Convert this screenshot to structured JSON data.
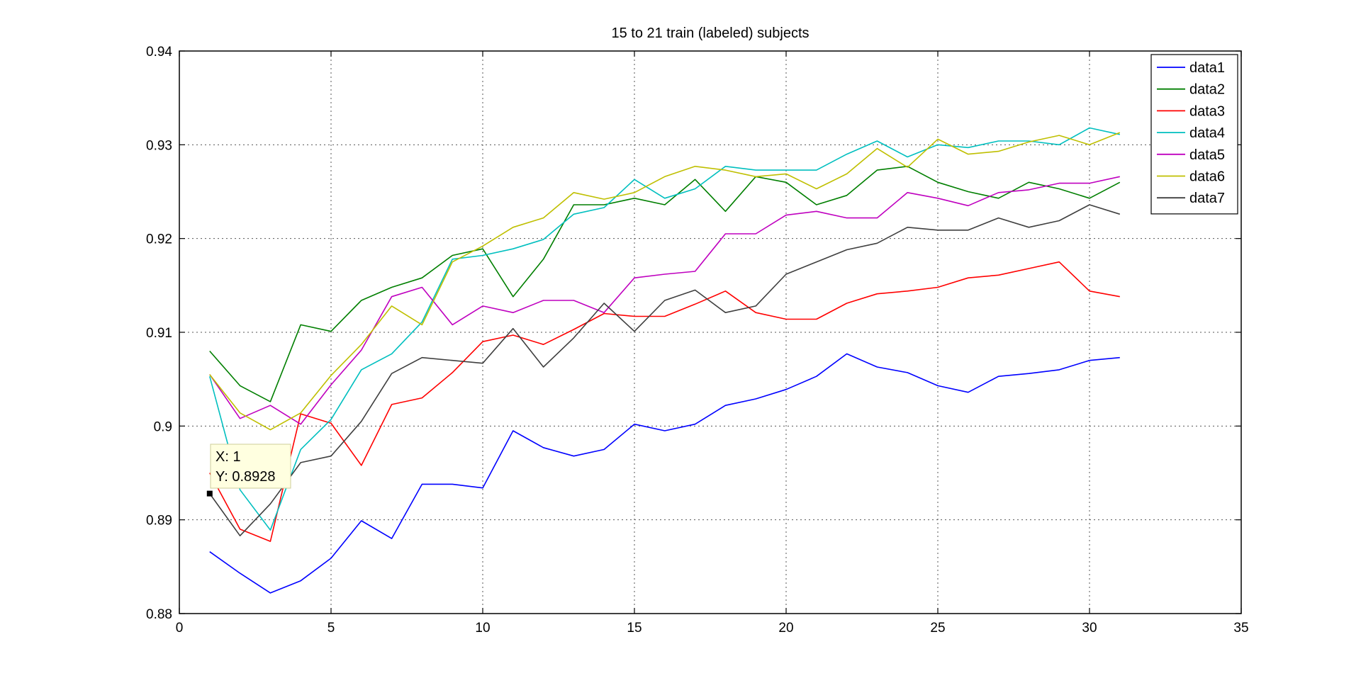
{
  "chart_data": {
    "type": "line",
    "title": "15 to 21 train (labeled) subjects",
    "xlabel": "",
    "ylabel": "",
    "xlim": [
      0,
      35
    ],
    "ylim": [
      0.88,
      0.94
    ],
    "xticks": [
      "0",
      "5",
      "10",
      "15",
      "20",
      "25",
      "30",
      "35"
    ],
    "yticks": [
      "0.88",
      "0.89",
      "0.9",
      "0.91",
      "0.92",
      "0.93",
      "0.94"
    ],
    "grid": true,
    "legend_position": "top-right",
    "x": [
      1,
      2,
      3,
      4,
      5,
      6,
      7,
      8,
      9,
      10,
      11,
      12,
      13,
      14,
      15,
      16,
      17,
      18,
      19,
      20,
      21,
      22,
      23,
      24,
      25,
      26,
      27,
      28,
      29,
      30,
      31
    ],
    "series": [
      {
        "name": "data1",
        "color": "#0000ff",
        "values": [
          0.8866,
          0.8843,
          0.8822,
          0.8835,
          0.8859,
          0.8899,
          0.888,
          0.8938,
          0.8938,
          0.8934,
          0.8995,
          0.8977,
          0.8968,
          0.8975,
          0.9002,
          0.8995,
          0.9002,
          0.9022,
          0.9029,
          0.9039,
          0.9053,
          0.9077,
          0.9063,
          0.9057,
          0.9043,
          0.9036,
          0.9053,
          0.9056,
          0.906,
          0.907,
          0.9073
        ]
      },
      {
        "name": "data2",
        "color": "#007f00",
        "values": [
          0.908,
          0.9043,
          0.9026,
          0.9108,
          0.9101,
          0.9134,
          0.9148,
          0.9158,
          0.9182,
          0.9189,
          0.9138,
          0.9178,
          0.9236,
          0.9236,
          0.9243,
          0.9236,
          0.9263,
          0.9229,
          0.9266,
          0.926,
          0.9236,
          0.9246,
          0.9273,
          0.9277,
          0.926,
          0.925,
          0.9243,
          0.926,
          0.9253,
          0.9243,
          0.926
        ]
      },
      {
        "name": "data3",
        "color": "#ff0000",
        "values": [
          0.895,
          0.889,
          0.8877,
          0.9013,
          0.9003,
          0.8958,
          0.9023,
          0.903,
          0.9057,
          0.909,
          0.9097,
          0.9087,
          0.9103,
          0.912,
          0.9117,
          0.9117,
          0.913,
          0.9144,
          0.9121,
          0.9114,
          0.9114,
          0.9131,
          0.9141,
          0.9144,
          0.9148,
          0.9158,
          0.9161,
          0.9168,
          0.9175,
          0.9144,
          0.9138
        ]
      },
      {
        "name": "data4",
        "color": "#00bfbf",
        "values": [
          0.9053,
          0.8932,
          0.8889,
          0.8975,
          0.9007,
          0.906,
          0.9077,
          0.9111,
          0.9178,
          0.9182,
          0.9189,
          0.9199,
          0.9226,
          0.9233,
          0.9263,
          0.9243,
          0.9253,
          0.9277,
          0.9273,
          0.9273,
          0.9273,
          0.929,
          0.9304,
          0.9287,
          0.93,
          0.9297,
          0.9304,
          0.9304,
          0.93,
          0.9318,
          0.9311
        ]
      },
      {
        "name": "data5",
        "color": "#bf00bf",
        "values": [
          0.9055,
          0.9008,
          0.9022,
          0.9002,
          0.9044,
          0.9081,
          0.9138,
          0.9148,
          0.9108,
          0.9128,
          0.9121,
          0.9134,
          0.9134,
          0.9121,
          0.9158,
          0.9162,
          0.9165,
          0.9205,
          0.9205,
          0.9225,
          0.9229,
          0.9222,
          0.9222,
          0.9249,
          0.9243,
          0.9235,
          0.9249,
          0.9252,
          0.9259,
          0.9259,
          0.9266
        ]
      },
      {
        "name": "data6",
        "color": "#bfbf00",
        "values": [
          0.9055,
          0.9014,
          0.8996,
          0.9014,
          0.9054,
          0.9087,
          0.9128,
          0.9108,
          0.9175,
          0.9192,
          0.9212,
          0.9222,
          0.9249,
          0.9242,
          0.9249,
          0.9266,
          0.9277,
          0.9273,
          0.9266,
          0.9269,
          0.9253,
          0.9269,
          0.9296,
          0.9276,
          0.9306,
          0.929,
          0.9293,
          0.9303,
          0.931,
          0.93,
          0.9313
        ]
      },
      {
        "name": "data7",
        "color": "#3f3f3f",
        "values": [
          0.8928,
          0.8883,
          0.8917,
          0.8961,
          0.8968,
          0.9005,
          0.9056,
          0.9073,
          0.907,
          0.9067,
          0.9104,
          0.9063,
          0.9094,
          0.9131,
          0.9101,
          0.9134,
          0.9145,
          0.9121,
          0.9128,
          0.9162,
          0.9175,
          0.9188,
          0.9195,
          0.9212,
          0.9209,
          0.9209,
          0.9222,
          0.9212,
          0.9219,
          0.9236,
          0.9226
        ]
      }
    ],
    "datatip": {
      "x_text": "X: 1",
      "y_text": "Y: 0.8928",
      "x": 1,
      "y": 0.8928
    }
  }
}
